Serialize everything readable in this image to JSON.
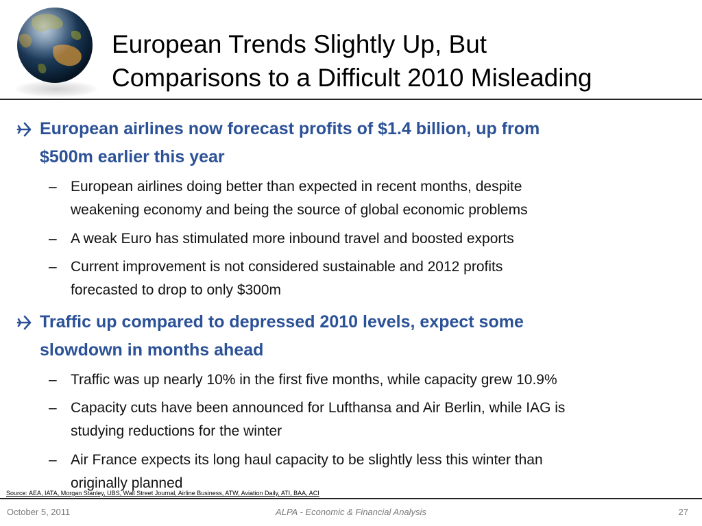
{
  "slide": {
    "title_line1": "European Trends Slightly Up, But",
    "title_line2": "Comparisons to a Difficult 2010 Misleading"
  },
  "bullets": [
    {
      "line1": "European airlines now forecast profits of $1.4 billion, up from",
      "line2": "$500m earlier this year",
      "subs": [
        {
          "line1": "European airlines doing better than expected in recent months, despite",
          "line2": "weakening economy and being the source of global economic problems"
        },
        {
          "line1": "A weak Euro has stimulated more inbound travel and boosted exports"
        },
        {
          "line1": "Current improvement is not considered sustainable and 2012 profits",
          "line2": "forecasted to drop to only $300m"
        }
      ]
    },
    {
      "line1": "Traffic up compared  to depressed 2010 levels, expect some",
      "line2": "slowdown in months ahead",
      "subs": [
        {
          "line1": "Traffic was up nearly 10% in the first five months, while capacity grew 10.9%"
        },
        {
          "line1": "Capacity cuts have been announced for Lufthansa and Air Berlin, while IAG is",
          "line2": "studying reductions for the winter"
        },
        {
          "line1": "Air France expects its long haul capacity to be slightly less this winter than",
          "line2": "originally planned"
        }
      ]
    }
  ],
  "source": "Source: AEA, IATA, Morgan Stanley, UBS, Wall Street Journal, Airline Business, ATW, Aviation Daily, ATI, BAA, ACI",
  "footer": {
    "date": "October 5, 2011",
    "center": "ALPA - Economic & Financial Analysis",
    "page": "27"
  },
  "colors": {
    "accent": "#2b5196",
    "rule": "#222222",
    "footer_text": "#7a7a7a"
  },
  "icons": {
    "bullet": "airplane-icon",
    "logo": "globe-icon"
  }
}
